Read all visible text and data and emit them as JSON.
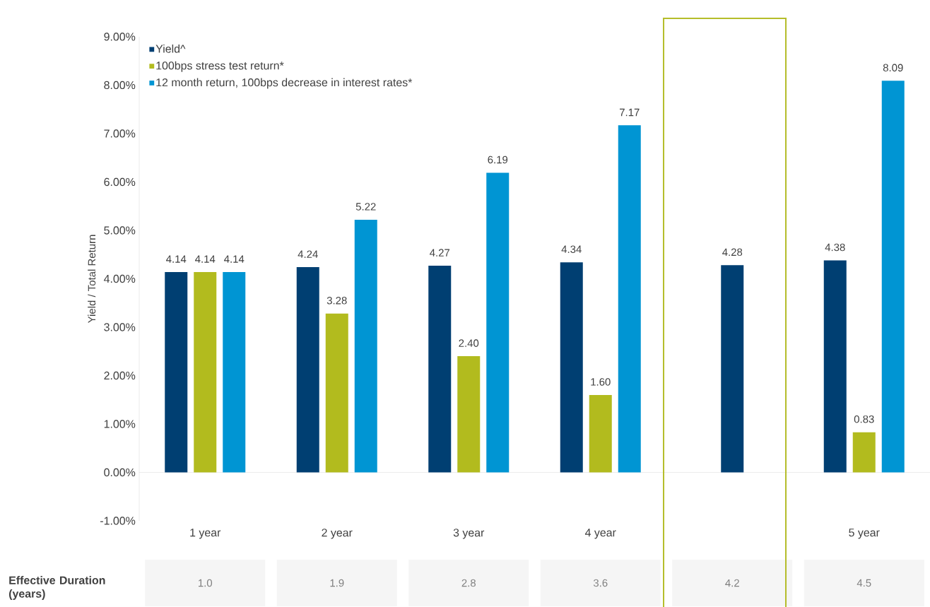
{
  "chart_data": {
    "type": "bar",
    "ylabel": "Yield / Total Return",
    "categories": [
      "1 year",
      "2 year",
      "3 year",
      "4 year",
      null,
      "5 year"
    ],
    "series": [
      {
        "name": "Yield^",
        "color": "#003f72",
        "values": [
          4.14,
          4.24,
          4.27,
          4.34,
          4.28,
          4.38
        ],
        "value_labels": [
          "4.14",
          "4.24",
          "4.27",
          "4.34",
          "4.28",
          "4.38"
        ]
      },
      {
        "name": "100bps stress test return*",
        "color": "#b2bb1e",
        "values": [
          4.14,
          3.28,
          2.4,
          1.6,
          null,
          0.83
        ],
        "value_labels": [
          "4.14",
          "3.28",
          "2.40",
          "1.60",
          null,
          "0.83"
        ]
      },
      {
        "name": "12 month return, 100bps decrease in interest rates*",
        "color": "#0095d3",
        "values": [
          4.14,
          5.22,
          6.19,
          7.17,
          null,
          8.09
        ],
        "value_labels": [
          "4.14",
          "5.22",
          "6.19",
          "7.17",
          null,
          "8.09"
        ]
      }
    ],
    "ylim": [
      -1,
      9
    ],
    "yticks": [
      {
        "value": -1,
        "label": "-1.00%"
      },
      {
        "value": 0,
        "label": "0.00%"
      },
      {
        "value": 1,
        "label": "1.00%"
      },
      {
        "value": 2,
        "label": "2.00%"
      },
      {
        "value": 3,
        "label": "3.00%"
      },
      {
        "value": 4,
        "label": "4.00%"
      },
      {
        "value": 5,
        "label": "5.00%"
      },
      {
        "value": 6,
        "label": "6.00%"
      },
      {
        "value": 7,
        "label": "7.00%"
      },
      {
        "value": 8,
        "label": "8.00%"
      },
      {
        "value": 9,
        "label": "9.00%"
      }
    ],
    "legend": "top left",
    "annotations": [
      "Effective Duration (years)",
      "1.0",
      "1.9",
      "2.8",
      "3.6",
      "4.2",
      "4.5"
    ]
  }
}
